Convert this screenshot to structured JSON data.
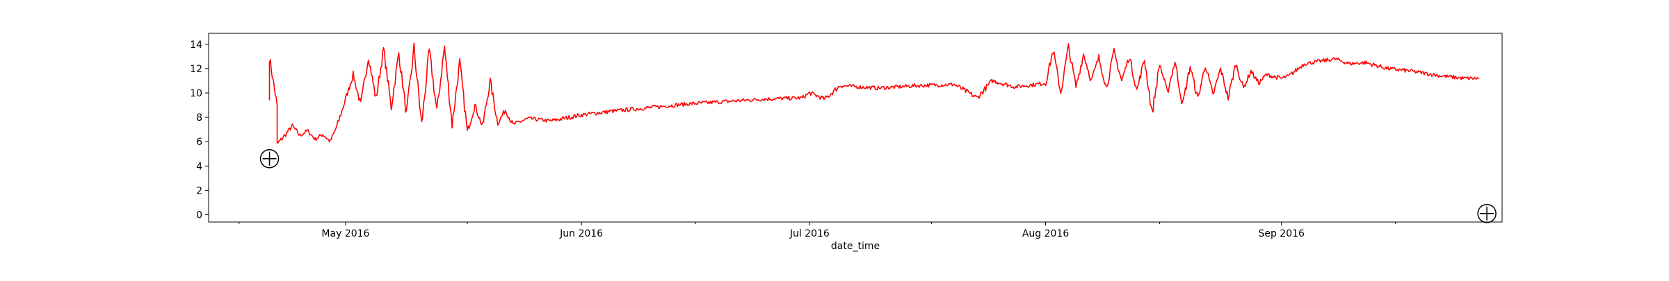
{
  "chart_data": {
    "type": "line",
    "xlabel": "date_time",
    "ylabel": "",
    "ylim": [
      -0.6,
      14.9
    ],
    "xlim": [
      "2016-04-13",
      "2016-09-30"
    ],
    "grid": false,
    "line_color": "#ff0000",
    "y_ticks": [
      0,
      2,
      4,
      6,
      8,
      10,
      12,
      14
    ],
    "x_major_ticks": [
      {
        "date": "2016-05-01",
        "label": "May 2016"
      },
      {
        "date": "2016-06-01",
        "label": "Jun 2016"
      },
      {
        "date": "2016-07-01",
        "label": "Jul 2016"
      },
      {
        "date": "2016-08-01",
        "label": "Aug 2016"
      },
      {
        "date": "2016-09-01",
        "label": "Sep 2016"
      }
    ],
    "x_minor_ticks": [
      "2016-04-17",
      "2016-05-17",
      "2016-06-16",
      "2016-07-17",
      "2016-08-16",
      "2016-09-16"
    ],
    "markers": [
      {
        "name": "min-marker",
        "x": "2016-04-21",
        "y": 4.6,
        "symbol": "circle-plus"
      },
      {
        "name": "max-marker",
        "x": "2016-09-28",
        "y": 0.1,
        "symbol": "circle-plus"
      }
    ],
    "series": [
      {
        "points": [
          [
            "2016-04-21",
            9.4
          ],
          [
            "2016-04-21",
            12.9
          ],
          [
            "2016-04-22",
            9.0
          ],
          [
            "2016-04-22",
            5.8
          ],
          [
            "2016-04-23",
            6.5
          ],
          [
            "2016-04-24",
            7.3
          ],
          [
            "2016-04-25",
            6.5
          ],
          [
            "2016-04-26",
            6.9
          ],
          [
            "2016-04-27",
            6.2
          ],
          [
            "2016-04-28",
            6.6
          ],
          [
            "2016-04-29",
            6.0
          ],
          [
            "2016-04-30",
            7.5
          ],
          [
            "2016-05-01",
            9.5
          ],
          [
            "2016-05-02",
            11.5
          ],
          [
            "2016-05-03",
            9.0
          ],
          [
            "2016-05-04",
            13.0
          ],
          [
            "2016-05-05",
            9.5
          ],
          [
            "2016-05-06",
            13.6
          ],
          [
            "2016-05-07",
            8.8
          ],
          [
            "2016-05-08",
            13.3
          ],
          [
            "2016-05-09",
            8.2
          ],
          [
            "2016-05-10",
            13.7
          ],
          [
            "2016-05-11",
            7.4
          ],
          [
            "2016-05-12",
            13.5
          ],
          [
            "2016-05-13",
            8.5
          ],
          [
            "2016-05-14",
            13.8
          ],
          [
            "2016-05-15",
            7.4
          ],
          [
            "2016-05-16",
            12.5
          ],
          [
            "2016-05-17",
            6.8
          ],
          [
            "2016-05-18",
            9.0
          ],
          [
            "2016-05-19",
            7.2
          ],
          [
            "2016-05-20",
            11.0
          ],
          [
            "2016-05-21",
            7.5
          ],
          [
            "2016-05-22",
            8.6
          ],
          [
            "2016-05-23",
            7.4
          ],
          [
            "2016-05-25",
            7.9
          ],
          [
            "2016-05-28",
            7.7
          ],
          [
            "2016-06-01",
            8.2
          ],
          [
            "2016-06-05",
            8.5
          ],
          [
            "2016-06-10",
            8.8
          ],
          [
            "2016-06-15",
            9.1
          ],
          [
            "2016-06-20",
            9.3
          ],
          [
            "2016-06-25",
            9.5
          ],
          [
            "2016-06-30",
            9.6
          ],
          [
            "2016-07-01",
            10.0
          ],
          [
            "2016-07-03",
            9.5
          ],
          [
            "2016-07-05",
            10.6
          ],
          [
            "2016-07-10",
            10.4
          ],
          [
            "2016-07-15",
            10.6
          ],
          [
            "2016-07-20",
            10.7
          ],
          [
            "2016-07-23",
            9.6
          ],
          [
            "2016-07-25",
            11.0
          ],
          [
            "2016-07-28",
            10.5
          ],
          [
            "2016-08-01",
            10.8
          ],
          [
            "2016-08-02",
            13.5
          ],
          [
            "2016-08-03",
            10.0
          ],
          [
            "2016-08-04",
            13.8
          ],
          [
            "2016-08-05",
            10.5
          ],
          [
            "2016-08-06",
            13.2
          ],
          [
            "2016-08-07",
            11.0
          ],
          [
            "2016-08-08",
            12.9
          ],
          [
            "2016-08-09",
            10.4
          ],
          [
            "2016-08-10",
            13.4
          ],
          [
            "2016-08-11",
            11.0
          ],
          [
            "2016-08-12",
            13.0
          ],
          [
            "2016-08-13",
            10.2
          ],
          [
            "2016-08-14",
            12.8
          ],
          [
            "2016-08-15",
            8.3
          ],
          [
            "2016-08-16",
            12.4
          ],
          [
            "2016-08-17",
            10.0
          ],
          [
            "2016-08-18",
            12.6
          ],
          [
            "2016-08-19",
            9.0
          ],
          [
            "2016-08-20",
            12.2
          ],
          [
            "2016-08-21",
            9.5
          ],
          [
            "2016-08-22",
            12.3
          ],
          [
            "2016-08-23",
            9.8
          ],
          [
            "2016-08-24",
            12.0
          ],
          [
            "2016-08-25",
            9.6
          ],
          [
            "2016-08-26",
            12.4
          ],
          [
            "2016-08-27",
            10.4
          ],
          [
            "2016-08-28",
            11.8
          ],
          [
            "2016-08-29",
            10.8
          ],
          [
            "2016-08-30",
            11.5
          ],
          [
            "2016-09-01",
            11.2
          ],
          [
            "2016-09-02",
            11.4
          ],
          [
            "2016-09-03",
            11.9
          ],
          [
            "2016-09-04",
            12.4
          ],
          [
            "2016-09-06",
            12.6
          ],
          [
            "2016-09-08",
            12.8
          ],
          [
            "2016-09-10",
            12.4
          ],
          [
            "2016-09-12",
            12.5
          ],
          [
            "2016-09-15",
            12.0
          ],
          [
            "2016-09-18",
            11.8
          ],
          [
            "2016-09-20",
            11.6
          ],
          [
            "2016-09-22",
            11.4
          ],
          [
            "2016-09-25",
            11.2
          ],
          [
            "2016-09-27",
            11.2
          ]
        ]
      }
    ]
  }
}
